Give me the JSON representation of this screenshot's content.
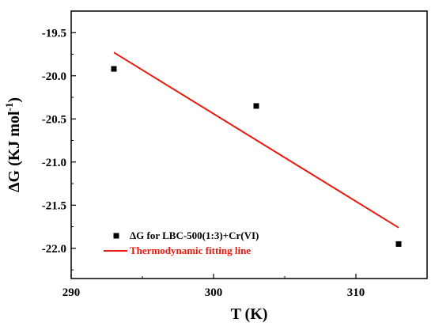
{
  "chart_data": {
    "type": "scatter",
    "title": "",
    "xlabel": "T (K)",
    "ylabel_base": "ΔG (KJ mol",
    "ylabel_sup": "-1",
    "ylabel_close": ")",
    "xlim": [
      290,
      315
    ],
    "ylim": [
      -22.35,
      -19.25
    ],
    "xticks": [
      290,
      300,
      310
    ],
    "xtick_labels": [
      "290",
      "300",
      "310"
    ],
    "yticks": [
      -19.5,
      -20.0,
      -20.5,
      -21.0,
      -21.5,
      -22.0
    ],
    "ytick_labels": [
      "-19.5",
      "-20.0",
      "-20.5",
      "-21.0",
      "-21.5",
      "-22.0"
    ],
    "grid": false,
    "legend_position": "bottom-left",
    "series": [
      {
        "name": "ΔG for LBC-500(1:3)+Cr(VI)",
        "kind": "scatter",
        "marker": "square",
        "color": "#000000",
        "x": [
          293,
          303,
          313
        ],
        "y": [
          -19.92,
          -20.35,
          -21.95
        ]
      },
      {
        "name": "Thermodynamic fitting line",
        "kind": "line",
        "color": "#e8190e",
        "x": [
          293,
          313
        ],
        "y": [
          -19.73,
          -21.76
        ]
      }
    ]
  }
}
